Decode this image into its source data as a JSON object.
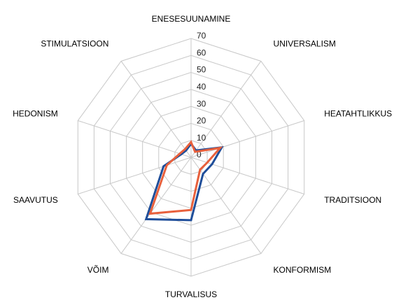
{
  "chart_data": {
    "type": "radar",
    "categories": [
      "ENESESUUNAMINE",
      "UNIVERSALISM",
      "HEATAHTLIKKUS",
      "TRADITSIOON",
      "KONFORMISM",
      "TURVALISUS",
      "VÕIM",
      "SAAVUTUS",
      "HEDONISM",
      "STIMULATSIOON"
    ],
    "series": [
      {
        "color": "#1f4e9a",
        "values": [
          8,
          5,
          19,
          13,
          12,
          37,
          45,
          17,
          6,
          5
        ]
      },
      {
        "color": "#e8603c",
        "values": [
          9,
          4,
          18,
          10,
          9,
          31,
          41,
          15,
          7,
          6
        ]
      }
    ],
    "ylim": [
      0,
      70
    ],
    "yticks": [
      0,
      10,
      20,
      30,
      40,
      50,
      60,
      70
    ],
    "grid": true
  }
}
